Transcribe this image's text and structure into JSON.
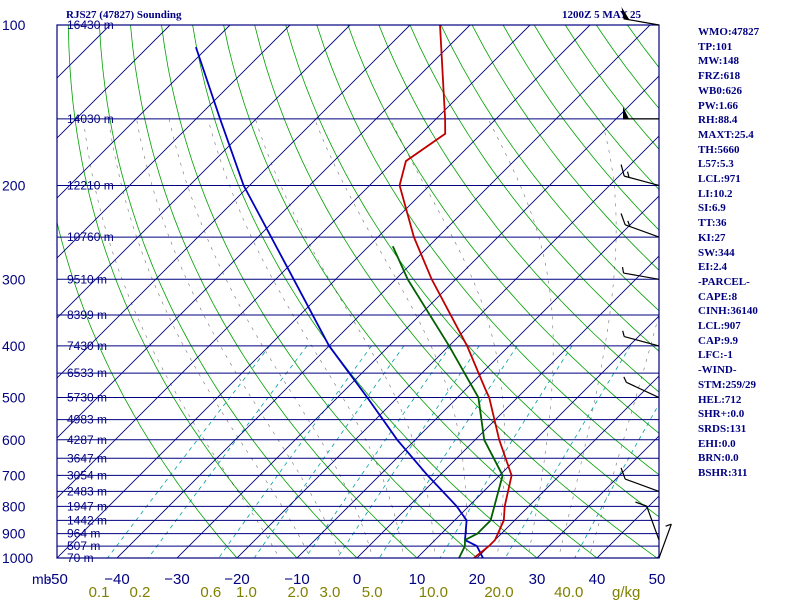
{
  "header": {
    "station": "RJS27 (47827) Sounding",
    "datetime": "1200Z  5 MAY 25"
  },
  "stats": [
    "WMO:47827",
    "TP:101",
    "MW:148",
    "FRZ:618",
    "WB0:626",
    "PW:1.66",
    "RH:88.4",
    "MAXT:25.4",
    "TH:5660",
    "L57:5.3",
    "LCL:971",
    "LI:10.2",
    "SI:6.9",
    "TT:36",
    "KI:27",
    "SW:344",
    "EI:2.4",
    "-PARCEL-",
    "CAPE:8",
    "CINH:36140",
    "LCL:907",
    "CAP:9.9",
    "LFC:-1",
    "-WIND-",
    "STM:259/29",
    "HEL:712",
    "SHR+:0.0",
    "SRDS:131",
    "EHI:0.0",
    "BRN:0.0",
    "BSHR:311"
  ],
  "colors": {
    "frame": "#000080",
    "isobar": "#000080",
    "isotherm": "#000080",
    "dry_adiabat": "#00a000",
    "moist_adiabat": "#000000",
    "mixing_ratio": "#00a0a0",
    "temperature": "#c00000",
    "dewpoint": "#006000",
    "parcel": "#0000c0",
    "axis_text": "#000080",
    "mixing_text": "#808000"
  },
  "chart_data": {
    "type": "skew-t log-p sounding",
    "pressure_unit": "mb",
    "temperature_unit": "C",
    "pressure_levels": [
      100,
      200,
      300,
      400,
      500,
      600,
      700,
      800,
      900,
      1000
    ],
    "pressure_axis_labels": [
      "100",
      "200",
      "300",
      "400",
      "500",
      "600",
      "700",
      "800",
      "900",
      "1000"
    ],
    "corner_label": "mb",
    "temperature_ticks": [
      -50,
      -40,
      -30,
      -20,
      -10,
      0,
      10,
      20,
      30,
      40,
      50
    ],
    "temperature_tick_labels": [
      "-50",
      "−40",
      "−30",
      "−20",
      "−10",
      "0",
      "10",
      "20",
      "30",
      "40",
      "50"
    ],
    "mixing_ratio_ticks": [
      0.1,
      0.2,
      0.6,
      1.0,
      2.0,
      3.0,
      5.0,
      10.0,
      20.0,
      40.0
    ],
    "mixing_ratio_labels": [
      "0.1",
      "0.2",
      "0.6",
      "1.0",
      "2.0",
      "3.0",
      "5.0",
      "10.0",
      "20.0",
      "40.0"
    ],
    "mixing_ratio_unit": "g/kg",
    "height_levels": [
      {
        "p": 100,
        "label": "16430 m"
      },
      {
        "p": 150,
        "label": "14030 m"
      },
      {
        "p": 200,
        "label": "12210 m"
      },
      {
        "p": 250,
        "label": "10760 m"
      },
      {
        "p": 300,
        "label": "9510 m"
      },
      {
        "p": 350,
        "label": "8399 m"
      },
      {
        "p": 400,
        "label": "7430 m"
      },
      {
        "p": 450,
        "label": "6533 m"
      },
      {
        "p": 500,
        "label": "5730 m"
      },
      {
        "p": 550,
        "label": "4983 m"
      },
      {
        "p": 600,
        "label": "4287 m"
      },
      {
        "p": 650,
        "label": "3647 m"
      },
      {
        "p": 700,
        "label": "3054 m"
      },
      {
        "p": 750,
        "label": "2483 m"
      },
      {
        "p": 800,
        "label": "1947 m"
      },
      {
        "p": 850,
        "label": "1442 m"
      },
      {
        "p": 900,
        "label": "964 m"
      },
      {
        "p": 950,
        "label": "507 m"
      },
      {
        "p": 1000,
        "label": "70 m"
      }
    ],
    "temperature_profile": [
      {
        "p": 1000,
        "t": 19.5
      },
      {
        "p": 950,
        "t": 20.0
      },
      {
        "p": 925,
        "t": 20.0
      },
      {
        "p": 850,
        "t": 18.2
      },
      {
        "p": 800,
        "t": 16.0
      },
      {
        "p": 700,
        "t": 12.0
      },
      {
        "p": 600,
        "t": 4.0
      },
      {
        "p": 500,
        "t": -4.7
      },
      {
        "p": 480,
        "t": -7.0
      },
      {
        "p": 400,
        "t": -17.0
      },
      {
        "p": 300,
        "t": -34.0
      },
      {
        "p": 250,
        "t": -44.0
      },
      {
        "p": 200,
        "t": -55.0
      },
      {
        "p": 180,
        "t": -58.0
      },
      {
        "p": 160,
        "t": -56.0
      },
      {
        "p": 150,
        "t": -58.5
      },
      {
        "p": 100,
        "t": -75.0
      }
    ],
    "dewpoint_profile": [
      {
        "p": 1000,
        "t": 17.0
      },
      {
        "p": 950,
        "t": 16.0
      },
      {
        "p": 925,
        "t": 15.0
      },
      {
        "p": 900,
        "t": 16.0
      },
      {
        "p": 850,
        "t": 16.0
      },
      {
        "p": 700,
        "t": 10.5
      },
      {
        "p": 600,
        "t": 1.5
      },
      {
        "p": 500,
        "t": -6.5
      },
      {
        "p": 400,
        "t": -20.0
      },
      {
        "p": 300,
        "t": -38.0
      },
      {
        "p": 260,
        "t": -46.0
      }
    ],
    "parcel_profile": [
      {
        "p": 1000,
        "t": 21.0
      },
      {
        "p": 950,
        "t": 18.0
      },
      {
        "p": 925,
        "t": 15.0
      },
      {
        "p": 850,
        "t": 12.0
      },
      {
        "p": 800,
        "t": 8.0
      },
      {
        "p": 700,
        "t": -2.0
      },
      {
        "p": 600,
        "t": -13.0
      },
      {
        "p": 500,
        "t": -25.0
      },
      {
        "p": 400,
        "t": -40.0
      },
      {
        "p": 300,
        "t": -57.0
      },
      {
        "p": 200,
        "t": -81.0
      },
      {
        "p": 150,
        "t": -96.0
      },
      {
        "p": 110,
        "t": -112.0
      }
    ],
    "wind_barbs": [
      {
        "p": 100,
        "dir": 260,
        "kt": 50
      },
      {
        "p": 150,
        "dir": 270,
        "kt": 50
      },
      {
        "p": 200,
        "dir": 255,
        "kt": 15
      },
      {
        "p": 250,
        "dir": 250,
        "kt": 15
      },
      {
        "p": 300,
        "dir": 260,
        "kt": 5
      },
      {
        "p": 400,
        "dir": 255,
        "kt": 5
      },
      {
        "p": 500,
        "dir": 245,
        "kt": 5
      },
      {
        "p": 750,
        "dir": 250,
        "kt": 10
      },
      {
        "p": 925,
        "dir": 200,
        "kt": 10
      },
      {
        "p": 1000,
        "dir": 160,
        "kt": 5
      }
    ]
  }
}
